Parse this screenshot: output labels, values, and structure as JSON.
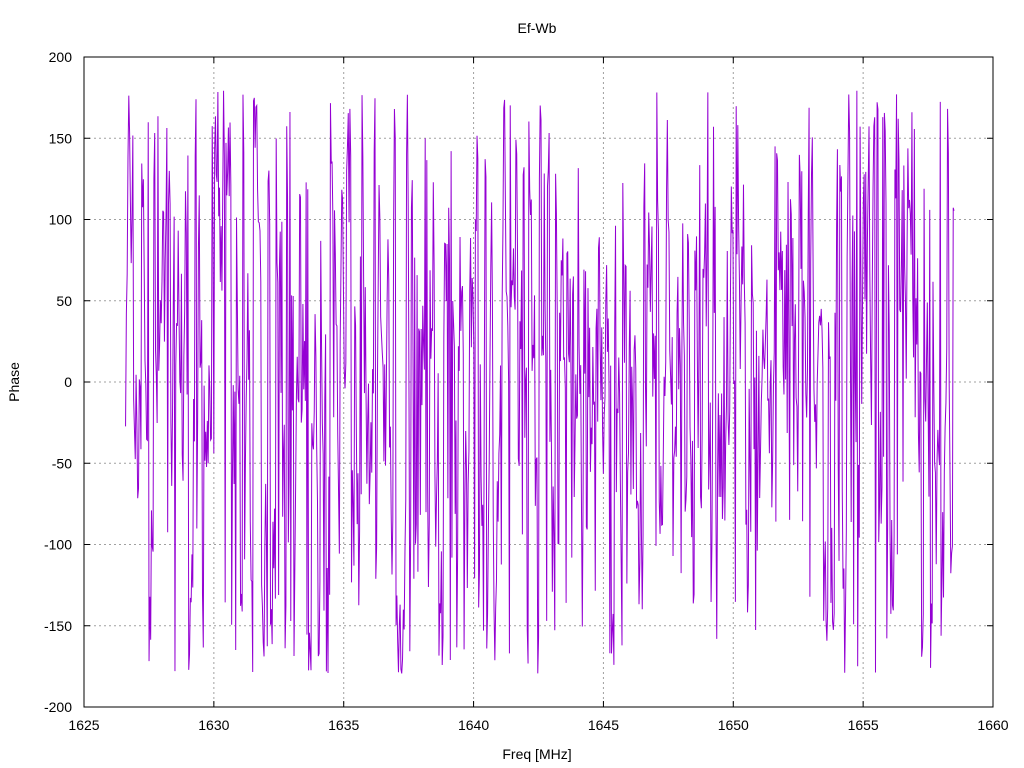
{
  "chart_data": {
    "type": "line",
    "title": "Ef-Wb",
    "xlabel": "Freq [MHz]",
    "ylabel": "Phase",
    "xlim": [
      1625,
      1660
    ],
    "ylim": [
      -200,
      200
    ],
    "xticks": [
      1625,
      1630,
      1635,
      1640,
      1645,
      1650,
      1655,
      1660
    ],
    "yticks": [
      -200,
      -150,
      -100,
      -50,
      0,
      50,
      100,
      150,
      200
    ],
    "grid": true,
    "series": [
      {
        "color": "#9400d3",
        "x_start": 1626.6,
        "x_end": 1658.5,
        "points_count": 1024,
        "y_min": -180,
        "y_max": 180
      }
    ]
  }
}
